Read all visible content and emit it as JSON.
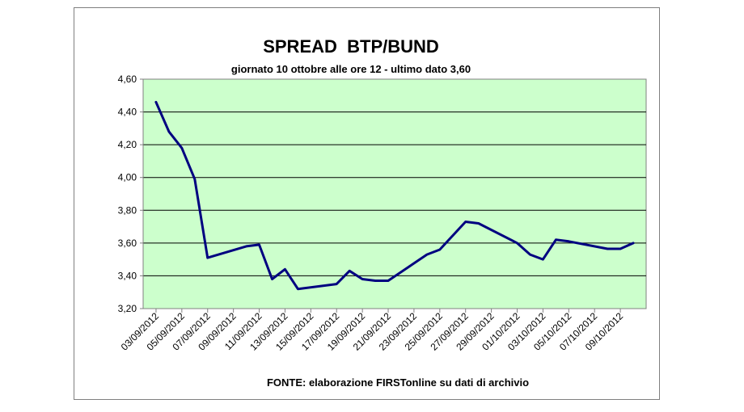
{
  "chart_data": {
    "type": "line",
    "title": "SPREAD  BTP/BUND",
    "subtitle": "giornato 10 ottobre alle ore 12 - ultimo dato 3,60",
    "footer": "FONTE: elaborazione FIRSTonline su dati di archivio",
    "xlabel": "",
    "ylabel": "",
    "ylim": [
      3.2,
      4.6
    ],
    "y_ticks": [
      "4,60",
      "4,40",
      "4,20",
      "4,00",
      "3,80",
      "3,60",
      "3,40",
      "3,20"
    ],
    "y_tick_values": [
      4.6,
      4.4,
      4.2,
      4.0,
      3.8,
      3.6,
      3.4,
      3.2
    ],
    "x_tick_labels": [
      "03/09/2012",
      "05/09/2012",
      "07/09/2012",
      "09/09/2012",
      "11/09/2012",
      "13/09/2012",
      "15/09/2012",
      "17/09/2012",
      "19/09/2012",
      "21/09/2012",
      "23/09/2012",
      "25/09/2012",
      "27/09/2012",
      "29/09/2012",
      "01/10/2012",
      "03/10/2012",
      "05/10/2012",
      "07/10/2012",
      "09/10/2012"
    ],
    "x": [
      "03/09/2012",
      "04/09/2012",
      "05/09/2012",
      "06/09/2012",
      "07/09/2012",
      "10/09/2012",
      "11/09/2012",
      "12/09/2012",
      "13/09/2012",
      "14/09/2012",
      "17/09/2012",
      "18/09/2012",
      "19/09/2012",
      "20/09/2012",
      "21/09/2012",
      "24/09/2012",
      "25/09/2012",
      "27/09/2012",
      "28/09/2012",
      "01/10/2012",
      "02/10/2012",
      "03/10/2012",
      "04/10/2012",
      "05/10/2012",
      "08/10/2012",
      "09/10/2012",
      "10/10/2012"
    ],
    "values": [
      4.46,
      4.28,
      4.18,
      3.99,
      3.51,
      3.58,
      3.59,
      3.38,
      3.44,
      3.32,
      3.35,
      3.43,
      3.38,
      3.37,
      3.37,
      3.53,
      3.56,
      3.73,
      3.72,
      3.6,
      3.53,
      3.5,
      3.62,
      3.61,
      3.565,
      3.565,
      3.6
    ],
    "grid": true,
    "legend": "none",
    "colors": {
      "plot_background": "#ccffcc",
      "line": "#000080",
      "grid": "#000000"
    }
  }
}
